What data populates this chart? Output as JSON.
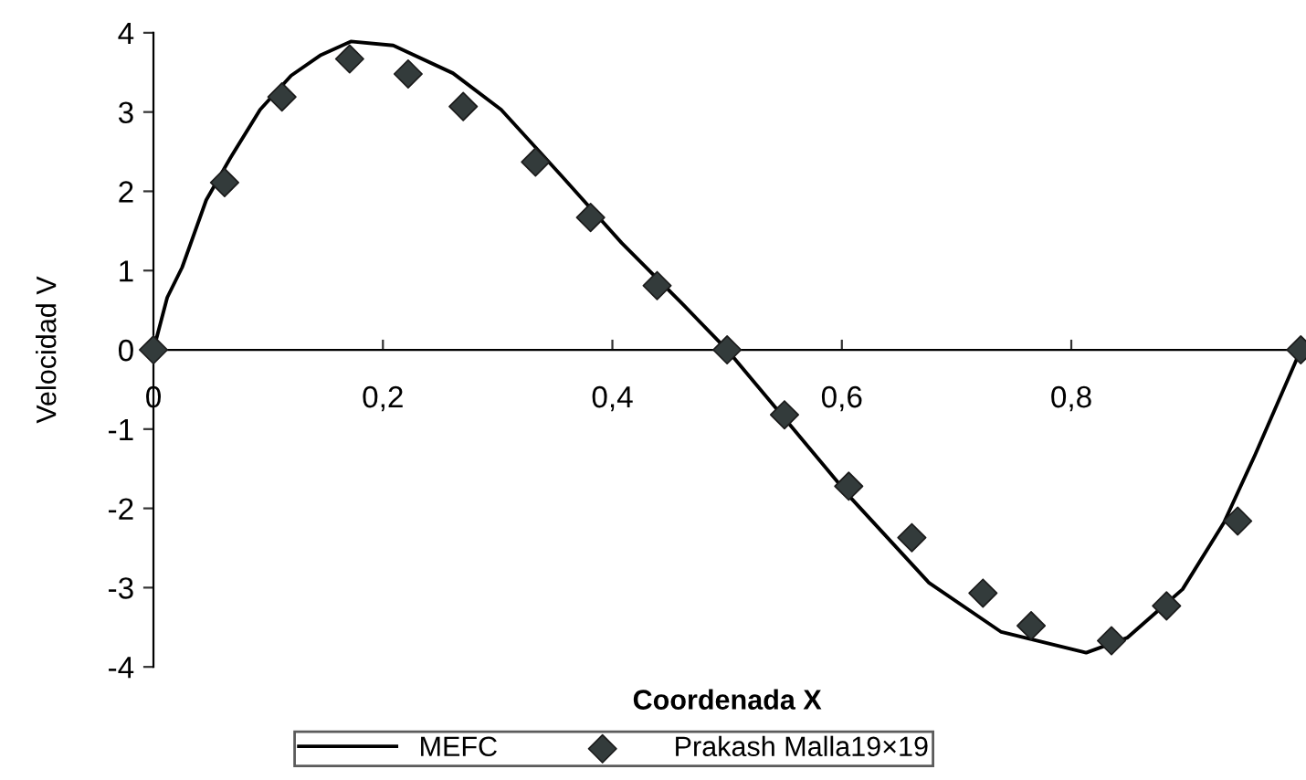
{
  "chart_data": {
    "type": "line",
    "xlabel": "Coordenada X",
    "ylabel": "Velocidad V",
    "xlim": [
      0,
      1
    ],
    "xticks": [
      0,
      {
        "value": 0.2,
        "label": "0,2"
      },
      {
        "value": 0.4,
        "label": "0,4"
      },
      {
        "value": 0.6,
        "label": "0,6"
      },
      {
        "value": 0.8,
        "label": "0,8"
      },
      {
        "value": 1,
        "label": null
      }
    ],
    "ylim": [
      -4,
      4
    ],
    "yticks": [
      -4,
      -3,
      -2,
      -1,
      0,
      1,
      2,
      3,
      4
    ],
    "grid": false,
    "legend": "bottom",
    "series": [
      {
        "name": "MEFC",
        "color": "#000000",
        "marker": "none",
        "line_style": "solid",
        "x": [
          0,
          0.012,
          0.025,
          0.046,
          0.067,
          0.093,
          0.12,
          0.146,
          0.172,
          0.209,
          0.261,
          0.303,
          0.356,
          0.408,
          0.461,
          0.5,
          0.555,
          0.608,
          0.676,
          0.739,
          0.813,
          0.849,
          0.897,
          0.933,
          0.96,
          1
        ],
        "values": [
          0,
          0.66,
          1.04,
          1.89,
          2.42,
          3.03,
          3.46,
          3.72,
          3.89,
          3.84,
          3.49,
          3.03,
          2.19,
          1.35,
          0.58,
          0,
          -0.95,
          -1.87,
          -2.94,
          -3.56,
          -3.82,
          -3.63,
          -3.02,
          -2.18,
          -1.33,
          0
        ]
      },
      {
        "name": "Prakash Malla19×19",
        "type": "scatter",
        "color": "#333b3b",
        "marker": "diamond",
        "x": [
          0,
          0.062,
          0.112,
          0.171,
          0.222,
          0.27,
          0.333,
          0.381,
          0.439,
          0.5,
          0.55,
          0.606,
          0.661,
          0.723,
          0.765,
          0.835,
          0.883,
          0.945,
          1
        ],
        "values": [
          0,
          2.11,
          3.19,
          3.67,
          3.48,
          3.07,
          2.37,
          1.67,
          0.81,
          0,
          -0.82,
          -1.72,
          -2.37,
          -3.07,
          -3.48,
          -3.67,
          -3.23,
          -2.16,
          0
        ]
      }
    ]
  }
}
